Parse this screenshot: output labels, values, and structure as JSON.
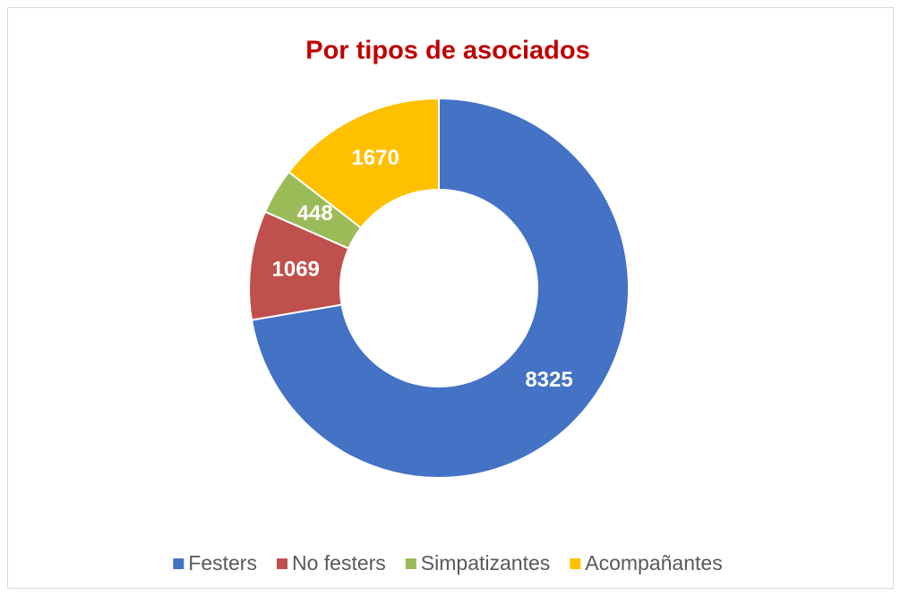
{
  "chart_data": {
    "type": "donut",
    "title": "Por tipos de asociados",
    "categories": [
      "Festers",
      "No festers",
      "Simpatizantes",
      "Acompañantes"
    ],
    "values": [
      8325,
      1069,
      448,
      1670
    ],
    "colors": [
      "#4472c4",
      "#c0504d",
      "#9bbb59",
      "#ffc000"
    ],
    "legend": "bottom"
  }
}
